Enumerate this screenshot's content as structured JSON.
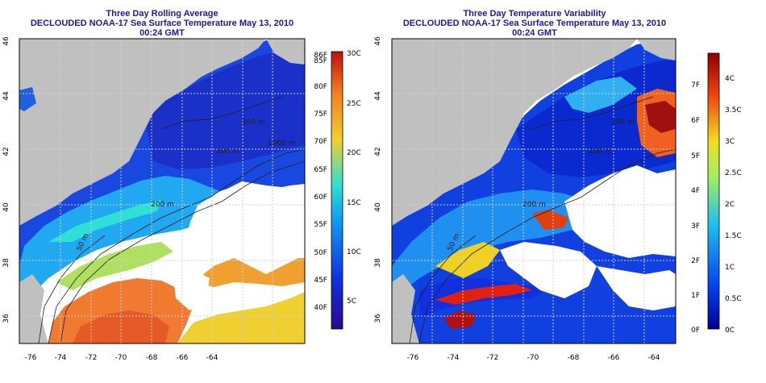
{
  "maps": [
    {
      "title": "Three Day Rolling Average",
      "subtitle": "DECLOUDED NOAA-17 Sea Surface Temperature May 13, 2010 00:24 GMT",
      "x_ticks": [
        "-76",
        "-74",
        "-72",
        "-70",
        "-68",
        "-66",
        "-64"
      ],
      "y_ticks": [
        "46",
        "44",
        "42",
        "40",
        "38",
        "36"
      ],
      "contour_labels": [
        "100 m",
        "200 m",
        "1000 m",
        "200 m",
        "50 m"
      ],
      "colorbar": {
        "left_labels": [
          "86F",
          "85F",
          "80F",
          "75F",
          "70F",
          "65F",
          "60F",
          "55F",
          "50F",
          "45F",
          "40F"
        ],
        "right_labels": [
          "30C",
          "25C",
          "20C",
          "15C",
          "10C",
          "5C"
        ]
      }
    },
    {
      "title": "Three Day Temperature Variability",
      "subtitle": "DECLOUDED NOAA-17 Sea Surface Temperature May 13, 2010 00:24 GMT",
      "x_ticks": [
        "-76",
        "-74",
        "-72",
        "-70",
        "-68",
        "-66",
        "-64"
      ],
      "y_ticks": [
        "46",
        "44",
        "42",
        "40",
        "38",
        "36"
      ],
      "contour_labels": [
        "100 m",
        "200 m",
        "200 m",
        "50 m"
      ],
      "colorbar": {
        "left_labels": [
          "7F",
          "6F",
          "5F",
          "4F",
          "3F",
          "2F",
          "1F",
          "0F"
        ],
        "right_labels": [
          "4C",
          "3.5C",
          "3C",
          "2.5C",
          "2C",
          "1.5C",
          "1C",
          "0.5C",
          "0C"
        ]
      }
    }
  ],
  "colors": {
    "land": "#c0c0c0",
    "no_data": "#ffffff",
    "title": "#1a1aa6",
    "sst_scale": [
      "#2a0a8a",
      "#1030e0",
      "#10a0f0",
      "#30e0d0",
      "#f0d030",
      "#f08020",
      "#c01010"
    ],
    "var_scale": [
      "#000090",
      "#0040f0",
      "#20c0f0",
      "#a0f060",
      "#f0e020",
      "#f04010",
      "#900000"
    ]
  }
}
